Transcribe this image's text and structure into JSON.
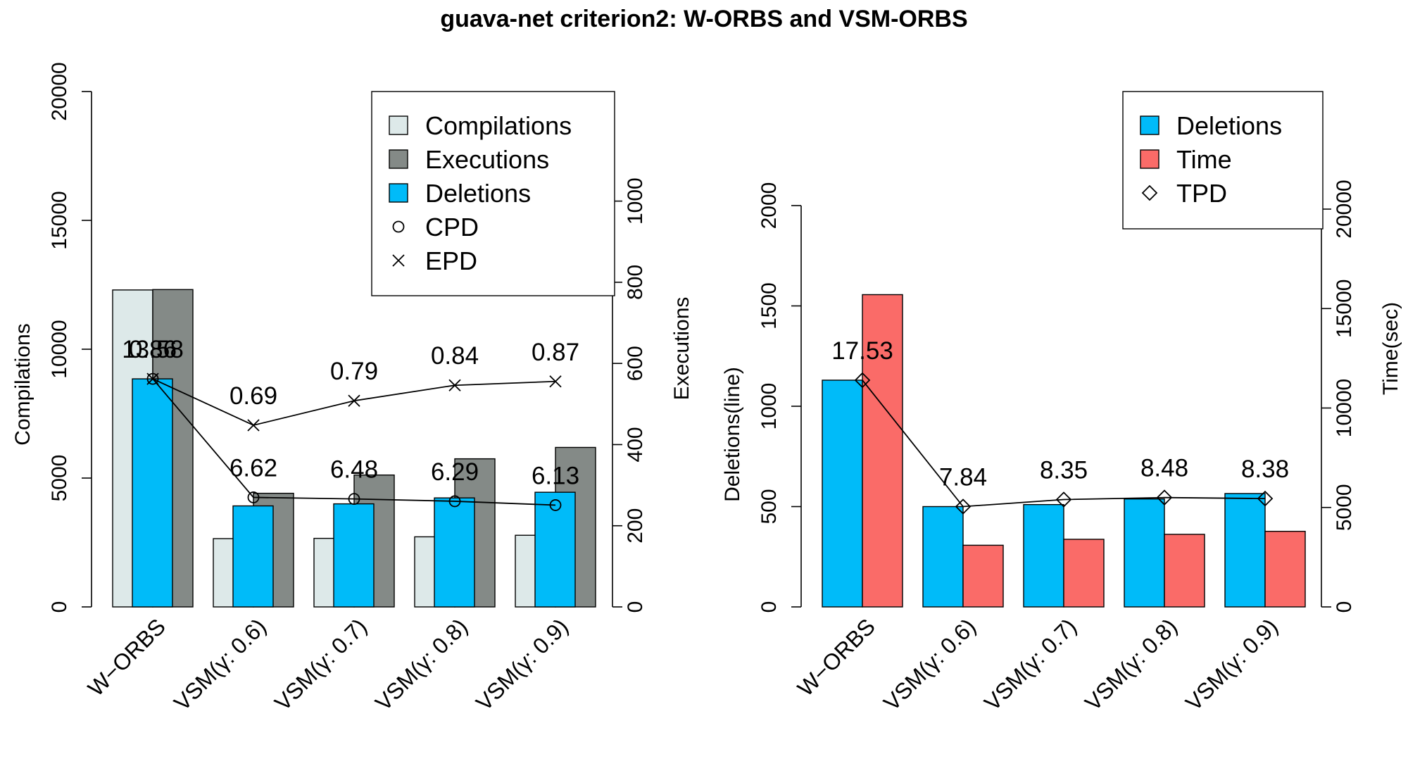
{
  "title": "guava-net criterion2: W-ORBS and VSM-ORBS",
  "colors": {
    "compilations": "#dde9e9",
    "executions": "#848a87",
    "deletions": "#00bbf9",
    "time": "#fa6b68"
  },
  "chart_data": [
    {
      "type": "bar",
      "name": "left-panel",
      "categories": [
        "W−ORBS",
        "VSM(γ: 0.6)",
        "VSM(γ: 0.7)",
        "VSM(γ: 0.8)",
        "VSM(γ: 0.9)"
      ],
      "left_axis": {
        "label": "Compilations",
        "ylim": [
          0,
          20000
        ],
        "ticks": [
          0,
          5000,
          10000,
          15000,
          20000
        ]
      },
      "right_axis": {
        "label": "Executions",
        "ylim": [
          0,
          1000
        ],
        "ticks": [
          0,
          200,
          400,
          600,
          800,
          1000
        ],
        "scale_top": 1270
      },
      "series": [
        {
          "name": "Compilations",
          "axis": "left",
          "values": [
            12300,
            2650,
            2660,
            2720,
            2780
          ]
        },
        {
          "name": "Deletions",
          "axis": "left",
          "values": [
            8850,
            3920,
            4000,
            4230,
            4450
          ]
        },
        {
          "name": "Executions",
          "axis": "right",
          "values": [
            782,
            280,
            325,
            365,
            393
          ]
        }
      ],
      "lines": [
        {
          "name": "CPD",
          "marker": "circle",
          "values": [
            8850,
            4250,
            4190,
            4100,
            3950
          ],
          "labels": [
            "13.58",
            "6.62",
            "6.48",
            "6.29",
            "6.13"
          ]
        },
        {
          "name": "EPD",
          "marker": "cross",
          "values": [
            8850,
            7050,
            8000,
            8600,
            8750
          ],
          "labels": [
            "0.86",
            "0.69",
            "0.79",
            "0.84",
            "0.87"
          ]
        }
      ],
      "legend": {
        "position": "top-right",
        "entries": [
          "Compilations",
          "Executions",
          "Deletions",
          "CPD",
          "EPD"
        ]
      }
    },
    {
      "type": "bar",
      "name": "right-panel",
      "categories": [
        "W−ORBS",
        "VSM(γ: 0.6)",
        "VSM(γ: 0.7)",
        "VSM(γ: 0.8)",
        "VSM(γ: 0.9)"
      ],
      "left_axis": {
        "label": "Deletions(line)",
        "ylim": [
          0,
          2000
        ],
        "ticks": [
          0,
          500,
          1000,
          1500,
          2000
        ]
      },
      "right_axis": {
        "label": "Time(sec)",
        "ylim": [
          0,
          20000
        ],
        "ticks": [
          0,
          5000,
          10000,
          15000,
          20000
        ],
        "scale_top": 20000
      },
      "series": [
        {
          "name": "Deletions",
          "axis": "left",
          "values": [
            1130,
            500,
            510,
            538,
            565
          ]
        },
        {
          "name": "Time",
          "axis": "right",
          "values": [
            15700,
            3100,
            3400,
            3650,
            3800
          ]
        }
      ],
      "lines": [
        {
          "name": "TPD",
          "marker": "diamond",
          "values": [
            1130,
            500,
            535,
            545,
            540
          ],
          "labels": [
            "17.53",
            "7.84",
            "8.35",
            "8.48",
            "8.38"
          ]
        }
      ],
      "legend": {
        "position": "top-right",
        "entries": [
          "Deletions",
          "Time",
          "TPD"
        ]
      }
    }
  ]
}
